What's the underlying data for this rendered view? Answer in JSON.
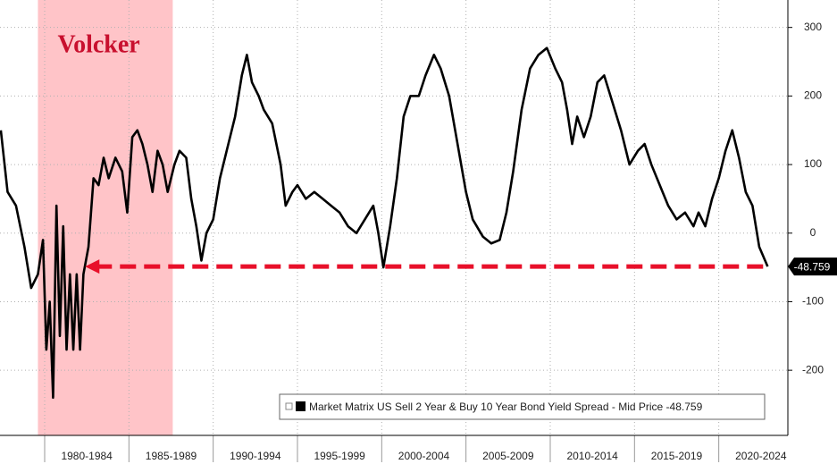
{
  "chart_data": {
    "type": "line",
    "shade": {
      "label": "Volcker",
      "x": [
        1979.6,
        1987.6
      ],
      "color": "#ffc4c8",
      "label_color": "#c8102e"
    },
    "reference_line": {
      "value": -48.759,
      "x": [
        1982.4,
        2022.9
      ],
      "color": "#e8102a"
    },
    "xlim": [
      1977.35,
      2024.1
    ],
    "ylim": [
      -295,
      340
    ],
    "yticks": [
      300,
      200,
      100,
      0,
      -100,
      -200
    ],
    "xticks": [
      {
        "value": 1980,
        "label": "1980-1984"
      },
      {
        "value": 1985,
        "label": "1985-1989"
      },
      {
        "value": 1990,
        "label": "1990-1994"
      },
      {
        "value": 1995,
        "label": "1995-1999"
      },
      {
        "value": 2000,
        "label": "2000-2004"
      },
      {
        "value": 2005,
        "label": "2005-2009"
      },
      {
        "value": 2010,
        "label": "2010-2014"
      },
      {
        "value": 2015,
        "label": "2015-2019"
      },
      {
        "value": 2020,
        "label": "2020-2024"
      }
    ],
    "grid": true,
    "legend": "bottom-right",
    "series": [
      {
        "name": "Market Matrix US Sell 2 Year & Buy 10 Year Bond Yield Spread - Mid Price -48.759",
        "color": "#000000",
        "last_value_label": "-48.759",
        "x": [
          1977.4,
          1977.8,
          1978.3,
          1978.8,
          1979.2,
          1979.6,
          1979.9,
          1980.1,
          1980.3,
          1980.5,
          1980.7,
          1980.9,
          1981.1,
          1981.3,
          1981.5,
          1981.7,
          1981.9,
          1982.1,
          1982.3,
          1982.6,
          1982.9,
          1983.2,
          1983.5,
          1983.8,
          1984.2,
          1984.6,
          1984.9,
          1985.2,
          1985.5,
          1985.8,
          1986.1,
          1986.4,
          1986.7,
          1987.0,
          1987.3,
          1987.7,
          1988.0,
          1988.4,
          1988.7,
          1989.0,
          1989.3,
          1989.6,
          1990.0,
          1990.4,
          1990.8,
          1991.3,
          1991.7,
          1992.0,
          1992.3,
          1992.7,
          1993.0,
          1993.5,
          1994.0,
          1994.3,
          1994.7,
          1995.0,
          1995.5,
          1996.0,
          1996.5,
          1997.0,
          1997.5,
          1998.0,
          1998.5,
          1999.0,
          1999.5,
          1999.8,
          2000.1,
          2000.5,
          2000.9,
          2001.3,
          2001.7,
          2002.2,
          2002.6,
          2003.1,
          2003.5,
          2004.0,
          2004.5,
          2005.0,
          2005.4,
          2006.0,
          2006.5,
          2007.0,
          2007.4,
          2007.8,
          2008.3,
          2008.8,
          2009.3,
          2009.8,
          2010.3,
          2010.7,
          2011.0,
          2011.3,
          2011.6,
          2012.0,
          2012.4,
          2012.8,
          2013.2,
          2013.7,
          2014.2,
          2014.7,
          2015.2,
          2015.6,
          2016.0,
          2016.5,
          2017.0,
          2017.5,
          2018.0,
          2018.5,
          2018.8,
          2019.2,
          2019.6,
          2020.0,
          2020.4,
          2020.8,
          2021.2,
          2021.6,
          2022.0,
          2022.4,
          2022.9
        ],
        "values": [
          150,
          60,
          40,
          -20,
          -80,
          -60,
          -10,
          -170,
          -100,
          -240,
          40,
          -150,
          10,
          -170,
          -60,
          -170,
          -60,
          -170,
          -60,
          -20,
          80,
          70,
          110,
          80,
          110,
          90,
          30,
          140,
          150,
          130,
          100,
          60,
          120,
          100,
          60,
          100,
          120,
          110,
          50,
          10,
          -40,
          0,
          20,
          80,
          120,
          170,
          230,
          260,
          220,
          200,
          180,
          160,
          100,
          40,
          60,
          70,
          50,
          60,
          50,
          40,
          30,
          10,
          0,
          20,
          40,
          0,
          -50,
          10,
          80,
          170,
          200,
          200,
          230,
          260,
          240,
          200,
          130,
          60,
          20,
          -5,
          -15,
          -10,
          30,
          90,
          180,
          240,
          260,
          270,
          240,
          220,
          180,
          130,
          170,
          140,
          170,
          220,
          230,
          190,
          150,
          100,
          120,
          130,
          100,
          70,
          40,
          20,
          30,
          10,
          30,
          10,
          50,
          80,
          120,
          150,
          110,
          60,
          40,
          -20,
          -48.759
        ]
      }
    ]
  }
}
